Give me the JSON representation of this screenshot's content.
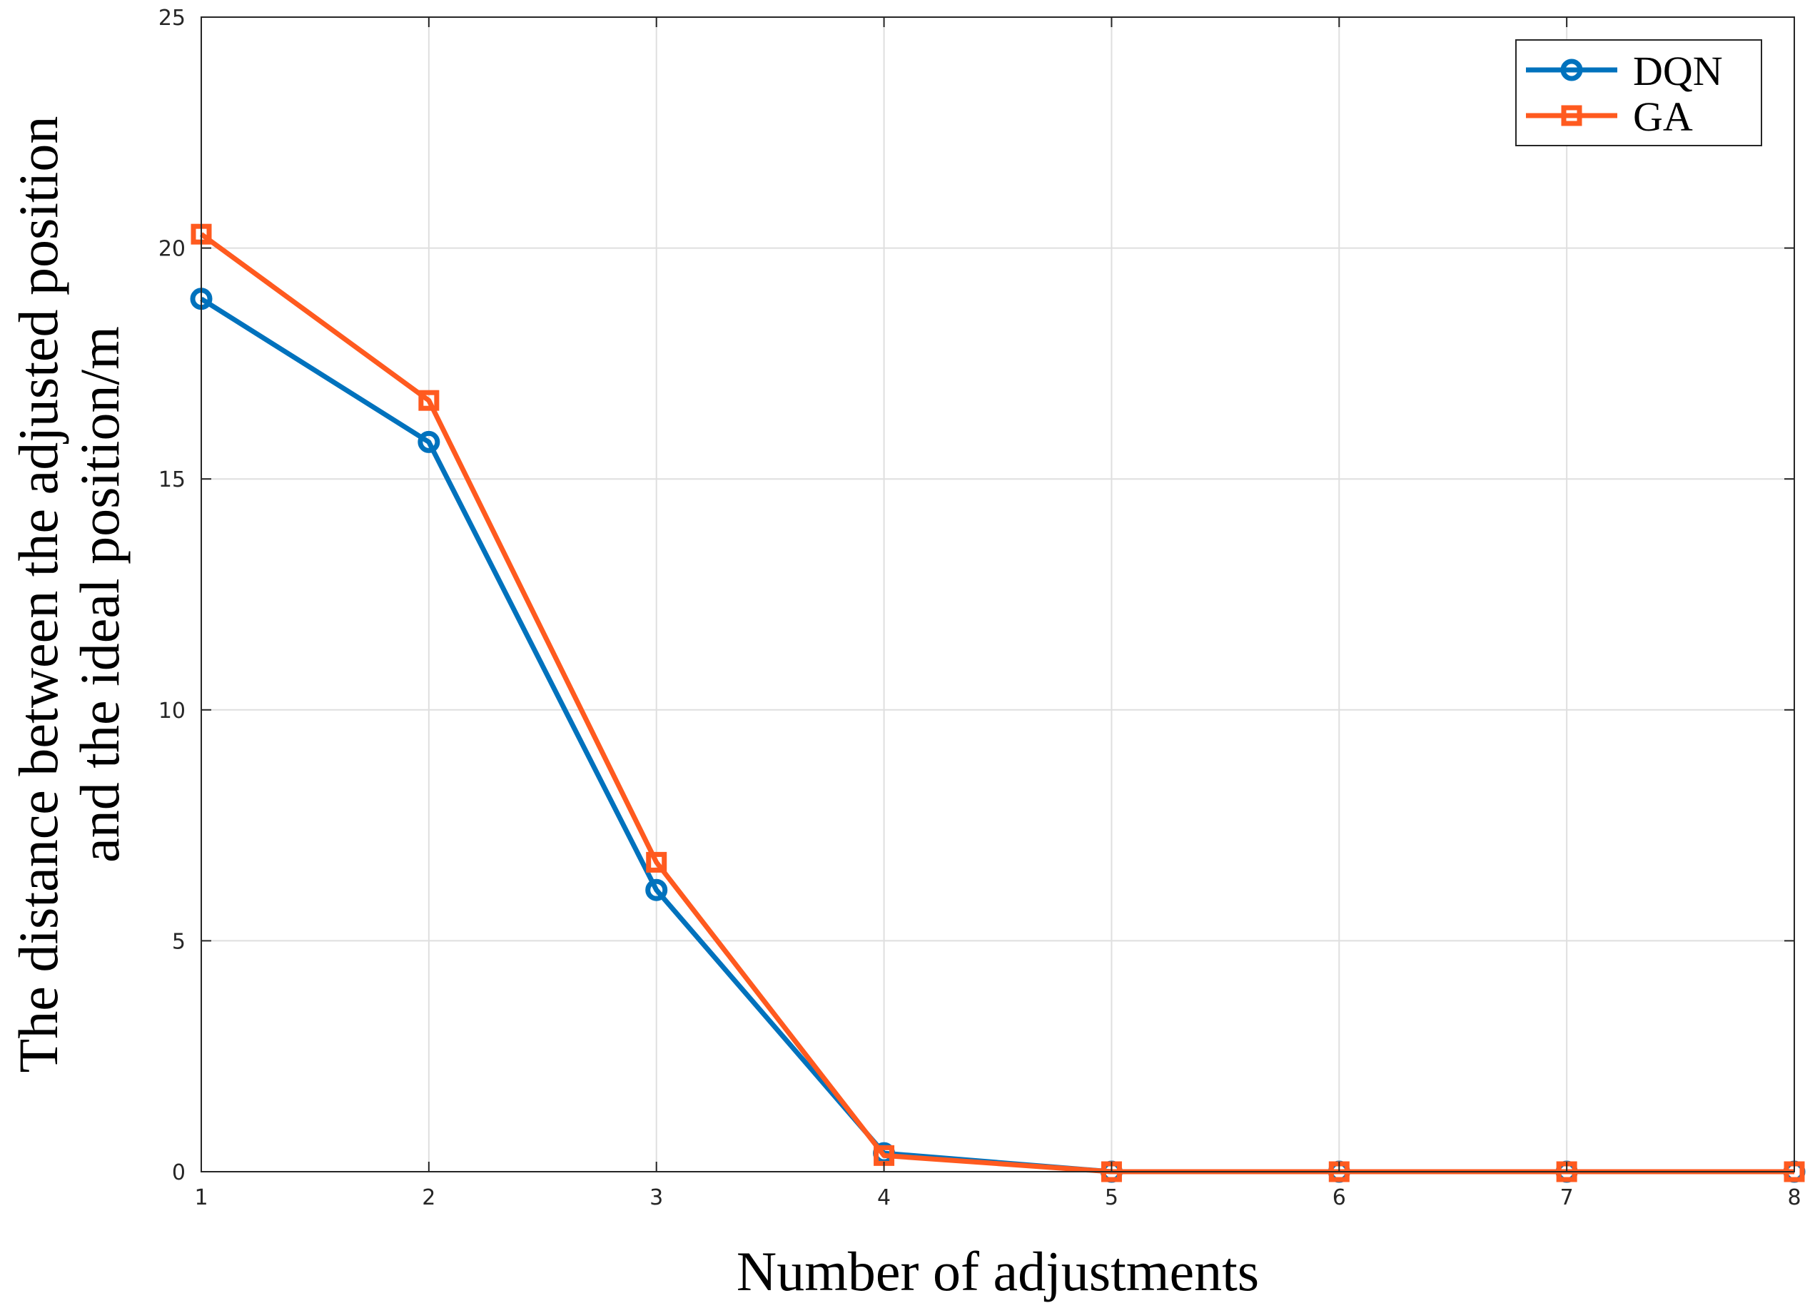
{
  "chart_data": {
    "type": "line",
    "title": "",
    "xlabel": "Number of adjustments",
    "ylabel_lines": [
      "The distance between the adjusted position",
      "and the ideal position/m"
    ],
    "x": [
      1,
      2,
      3,
      4,
      5,
      6,
      7,
      8
    ],
    "xlim": [
      1,
      8
    ],
    "ylim": [
      0,
      25
    ],
    "xticks": [
      1,
      2,
      3,
      4,
      5,
      6,
      7,
      8
    ],
    "yticks": [
      0,
      5,
      10,
      15,
      20,
      25
    ],
    "grid": true,
    "legend_position": "top-right",
    "series": [
      {
        "name": "DQN",
        "values": [
          18.9,
          15.8,
          6.1,
          0.4,
          0.0,
          0.0,
          0.0,
          0.0
        ],
        "color": "#0072BD",
        "marker": "circle"
      },
      {
        "name": "GA",
        "values": [
          20.3,
          16.7,
          6.7,
          0.35,
          0.0,
          0.0,
          0.0,
          0.0
        ],
        "color": "#FF5A1F",
        "marker": "square"
      }
    ]
  }
}
